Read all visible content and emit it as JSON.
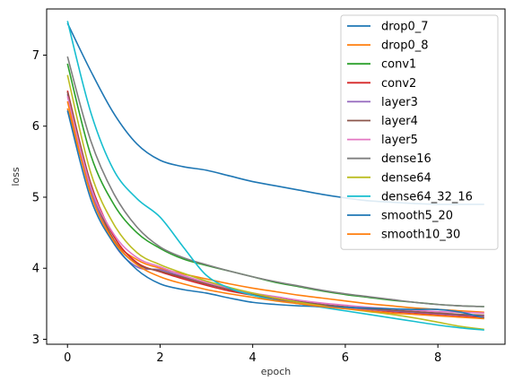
{
  "chart_data": {
    "type": "line",
    "title": "",
    "xlabel": "epoch",
    "ylabel": "loss",
    "xlim": [
      -0.45,
      9.45
    ],
    "ylim": [
      2.93,
      7.65
    ],
    "xticks": [
      0,
      2,
      4,
      6,
      8
    ],
    "yticks": [
      3,
      4,
      5,
      6,
      7
    ],
    "grid": false,
    "legend_position": "upper right",
    "x": [
      0,
      0.5,
      1,
      1.5,
      2,
      2.5,
      3,
      3.5,
      4,
      4.5,
      5,
      5.5,
      6,
      6.5,
      7,
      7.5,
      8,
      8.5,
      9
    ],
    "series": [
      {
        "name": "drop0_7",
        "color": "#1f77b4",
        "values": [
          7.45,
          6.78,
          6.18,
          5.75,
          5.52,
          5.43,
          5.38,
          5.3,
          5.22,
          5.16,
          5.1,
          5.04,
          4.99,
          4.95,
          4.93,
          4.91,
          4.9,
          4.9,
          4.9
        ]
      },
      {
        "name": "drop0_8",
        "color": "#ff7f0e",
        "values": [
          6.25,
          5.1,
          4.4,
          4.12,
          4.0,
          3.92,
          3.85,
          3.78,
          3.72,
          3.67,
          3.62,
          3.58,
          3.54,
          3.5,
          3.47,
          3.44,
          3.42,
          3.4,
          3.38
        ]
      },
      {
        "name": "conv1",
        "color": "#2ca02c",
        "values": [
          6.88,
          5.6,
          4.9,
          4.5,
          4.28,
          4.13,
          4.04,
          3.96,
          3.88,
          3.8,
          3.74,
          3.68,
          3.63,
          3.59,
          3.55,
          3.52,
          3.49,
          3.47,
          3.46
        ]
      },
      {
        "name": "conv2",
        "color": "#d62728",
        "values": [
          6.5,
          5.2,
          4.45,
          4.08,
          3.95,
          3.85,
          3.76,
          3.68,
          3.62,
          3.56,
          3.52,
          3.48,
          3.45,
          3.42,
          3.39,
          3.37,
          3.35,
          3.33,
          3.31
        ]
      },
      {
        "name": "layer3",
        "color": "#9467bd",
        "values": [
          6.45,
          5.12,
          4.35,
          4.02,
          3.98,
          3.88,
          3.78,
          3.7,
          3.63,
          3.58,
          3.53,
          3.49,
          3.45,
          3.42,
          3.4,
          3.38,
          3.36,
          3.34,
          3.33
        ]
      },
      {
        "name": "layer4",
        "color": "#8c564b",
        "values": [
          6.48,
          5.18,
          4.4,
          4.06,
          3.96,
          3.87,
          3.78,
          3.7,
          3.63,
          3.58,
          3.53,
          3.49,
          3.46,
          3.43,
          3.41,
          3.39,
          3.37,
          3.35,
          3.34
        ]
      },
      {
        "name": "layer5",
        "color": "#e377c2",
        "values": [
          6.42,
          5.15,
          4.48,
          4.15,
          4.02,
          3.9,
          3.8,
          3.72,
          3.65,
          3.6,
          3.55,
          3.51,
          3.48,
          3.45,
          3.43,
          3.41,
          3.39,
          3.38,
          3.37
        ]
      },
      {
        "name": "dense16",
        "color": "#7f7f7f",
        "values": [
          6.98,
          5.8,
          5.05,
          4.58,
          4.3,
          4.15,
          4.05,
          3.96,
          3.88,
          3.81,
          3.75,
          3.69,
          3.64,
          3.6,
          3.56,
          3.52,
          3.49,
          3.47,
          3.46
        ]
      },
      {
        "name": "dense64",
        "color": "#bcbd22",
        "values": [
          6.72,
          5.35,
          4.62,
          4.22,
          4.05,
          3.93,
          3.82,
          3.73,
          3.65,
          3.58,
          3.52,
          3.47,
          3.43,
          3.39,
          3.35,
          3.3,
          3.24,
          3.18,
          3.14
        ]
      },
      {
        "name": "dense64_32_16",
        "color": "#17becf",
        "values": [
          7.48,
          6.2,
          5.38,
          4.98,
          4.72,
          4.3,
          3.9,
          3.72,
          3.62,
          3.55,
          3.5,
          3.45,
          3.4,
          3.35,
          3.3,
          3.25,
          3.2,
          3.16,
          3.13
        ]
      },
      {
        "name": "smooth5_20",
        "color": "#1f77b4",
        "values": [
          6.22,
          4.98,
          4.35,
          3.98,
          3.78,
          3.7,
          3.65,
          3.58,
          3.52,
          3.49,
          3.47,
          3.46,
          3.45,
          3.44,
          3.43,
          3.42,
          3.42,
          3.38,
          3.3
        ]
      },
      {
        "name": "smooth10_30",
        "color": "#ff7f0e",
        "values": [
          6.35,
          5.05,
          4.38,
          4.05,
          3.88,
          3.78,
          3.7,
          3.64,
          3.59,
          3.54,
          3.5,
          3.46,
          3.43,
          3.4,
          3.37,
          3.35,
          3.33,
          3.31,
          3.29
        ]
      }
    ]
  }
}
